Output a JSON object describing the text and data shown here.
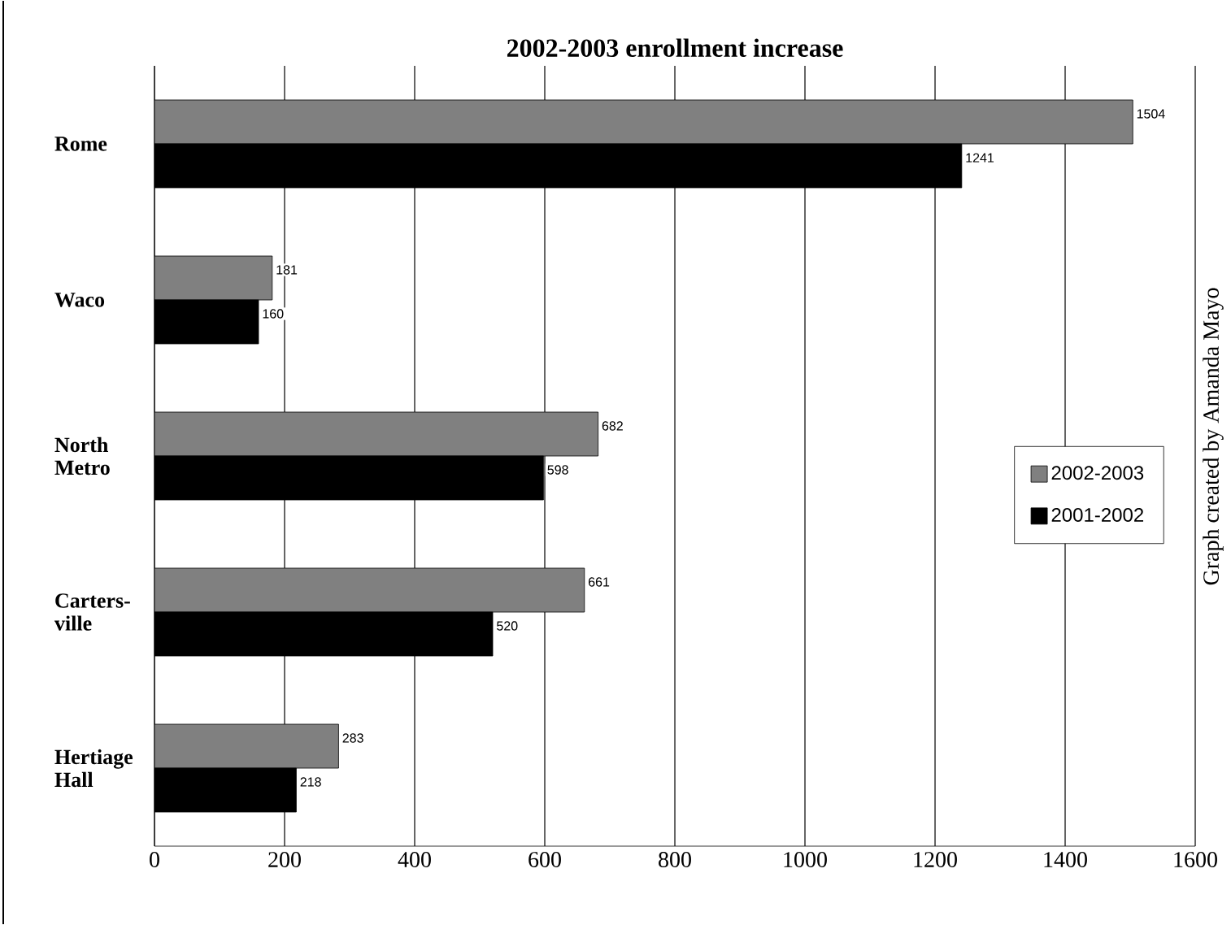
{
  "chart_data": {
    "type": "bar",
    "orientation": "horizontal",
    "title": "2002-2003 enrollment increase",
    "categories": [
      "Rome",
      "Waco",
      "North Metro",
      "Carters-ville",
      "Hertiage Hall"
    ],
    "series": [
      {
        "name": "2002-2003",
        "color": "#808080",
        "values": [
          1504,
          181,
          682,
          661,
          283
        ]
      },
      {
        "name": "2001-2002",
        "color": "#000000",
        "values": [
          1241,
          160,
          598,
          520,
          218
        ]
      }
    ],
    "xlim": [
      0,
      1600
    ],
    "xticks": [
      0,
      200,
      400,
      600,
      800,
      1000,
      1200,
      1400,
      1600
    ],
    "grid": "x",
    "legend": "right",
    "data_labels": true,
    "annotations": [
      "Graph created by Amanda Mayo"
    ]
  }
}
